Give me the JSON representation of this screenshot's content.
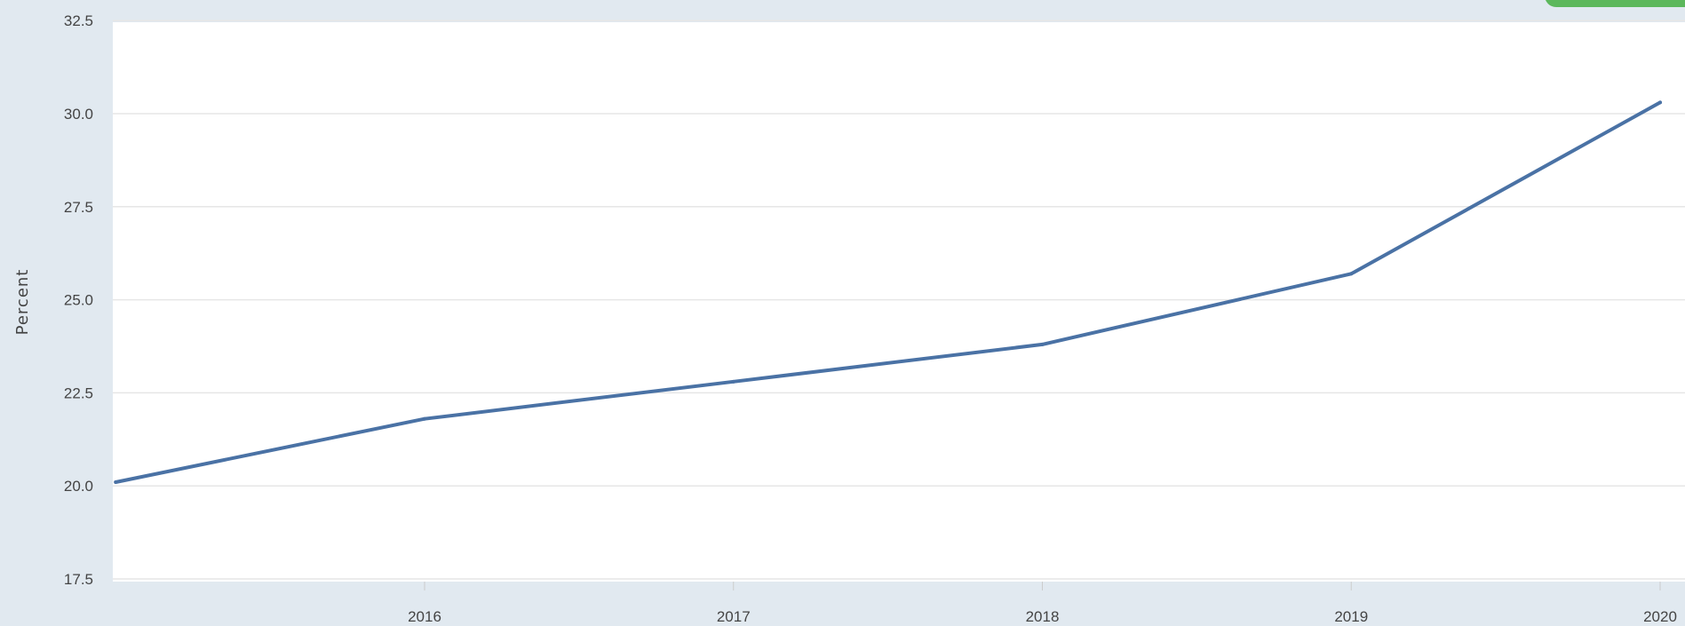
{
  "chart_data": {
    "type": "line",
    "title": "",
    "xlabel": "",
    "ylabel": "Percent",
    "xlim": [
      2015,
      2020
    ],
    "ylim": [
      17.5,
      32.5
    ],
    "x_ticks": [
      "2016",
      "2017",
      "2018",
      "2019",
      "2020"
    ],
    "y_ticks": [
      "17.5",
      "20.0",
      "22.5",
      "25.0",
      "27.5",
      "30.0",
      "32.5"
    ],
    "grid": "horizontal",
    "colors": {
      "page_background": "#e1e9f0",
      "plot_background": "#ffffff",
      "grid": "#e6e6e6",
      "line": "#4a72a5",
      "badge": "#5cb85c"
    },
    "series": [
      {
        "x": [
          2015,
          2016,
          2017,
          2018,
          2019,
          2020
        ],
        "values": [
          20.1,
          21.8,
          22.8,
          23.8,
          25.7,
          30.3
        ]
      }
    ]
  }
}
